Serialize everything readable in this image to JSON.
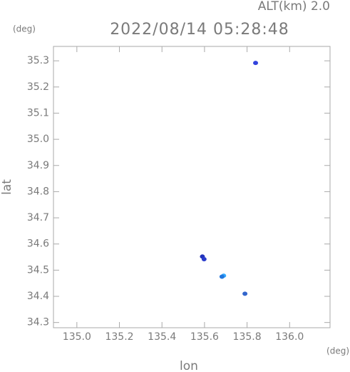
{
  "chart_data": {
    "type": "scatter",
    "title": "2022/08/14 05:28:48",
    "annotation": "ALT(km) 2.0",
    "x_label": "lon",
    "y_label": "lat",
    "x_unit": "(deg)",
    "y_unit": "(deg)",
    "x": [
      135.84,
      135.59,
      135.598,
      135.69,
      135.682,
      135.79
    ],
    "values": [
      35.292,
      34.552,
      34.542,
      34.479,
      34.475,
      34.41
    ],
    "colors": [
      "#3344dd",
      "#2233bb",
      "#2a3ccc",
      "#33aaff",
      "#2277dd",
      "#3366cc"
    ],
    "xlim": [
      134.89,
      136.19
    ],
    "ylim": [
      34.28,
      35.355
    ],
    "xticks": [
      {
        "value": 135,
        "label": "135.0"
      },
      135.2,
      135.4,
      135.6,
      135.8,
      {
        "value": 136,
        "label": "136.0"
      }
    ],
    "yticks": [
      34.3,
      34.4,
      34.5,
      34.6,
      34.7,
      34.8,
      34.9,
      {
        "value": 35,
        "label": "35.0"
      },
      35.1,
      35.2,
      35.3
    ],
    "frame_color": "#aaaaaa"
  }
}
